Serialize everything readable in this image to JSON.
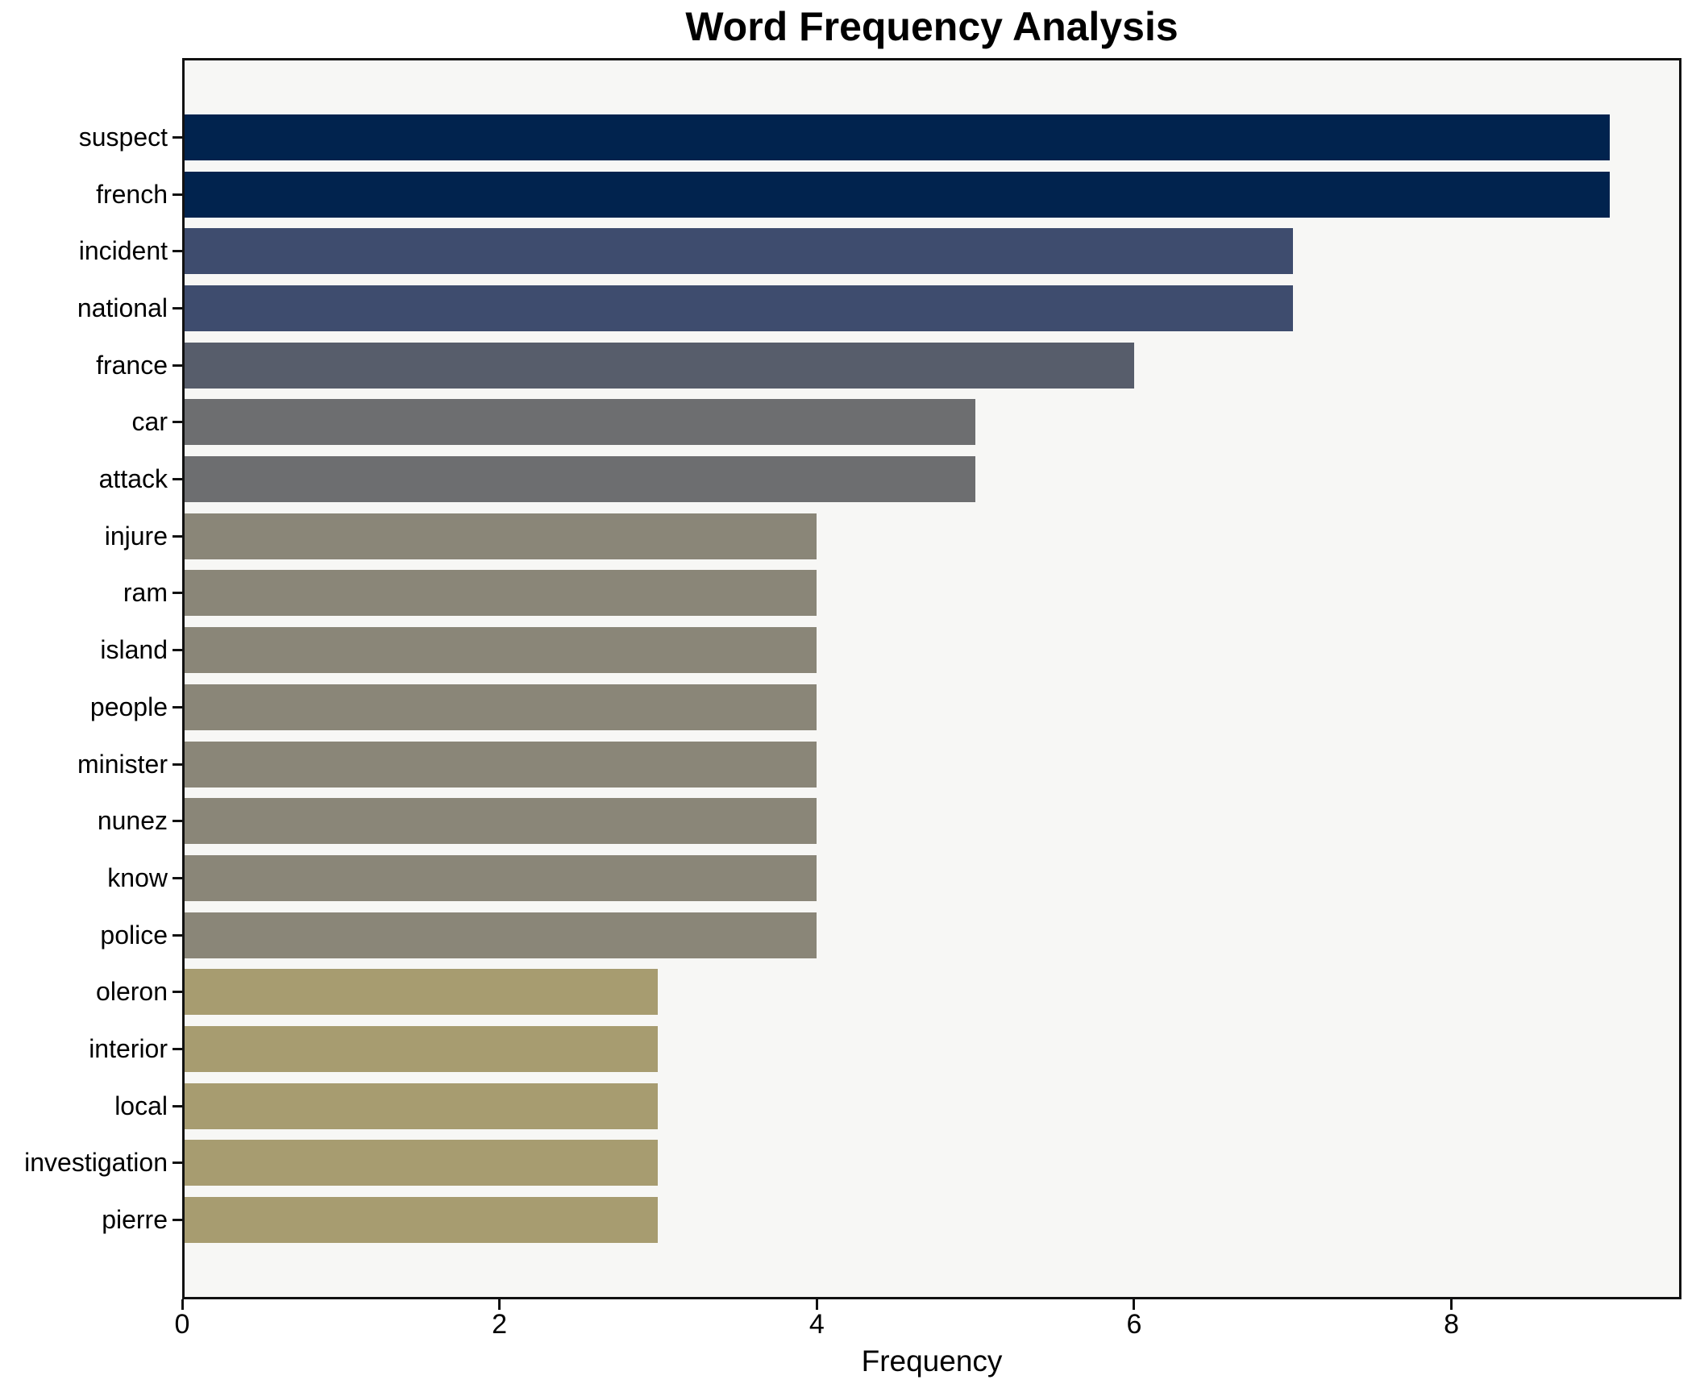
{
  "title": "Word Frequency Analysis",
  "chart_data": {
    "type": "bar",
    "orientation": "horizontal",
    "title": "Word Frequency Analysis",
    "xlabel": "Frequency",
    "ylabel": "",
    "categories": [
      "suspect",
      "french",
      "incident",
      "national",
      "france",
      "car",
      "attack",
      "injure",
      "ram",
      "island",
      "people",
      "minister",
      "nunez",
      "know",
      "police",
      "oleron",
      "interior",
      "local",
      "investigation",
      "pierre"
    ],
    "values": [
      9,
      9,
      7,
      7,
      6,
      5,
      5,
      4,
      4,
      4,
      4,
      4,
      4,
      4,
      4,
      3,
      3,
      3,
      3,
      3
    ],
    "bar_colors": [
      "#01234e",
      "#01234e",
      "#3e4c6e",
      "#3e4c6e",
      "#575d6b",
      "#6d6e70",
      "#6d6e70",
      "#8a8678",
      "#8a8678",
      "#8a8678",
      "#8a8678",
      "#8a8678",
      "#8a8678",
      "#8a8678",
      "#8a8678",
      "#a79c70",
      "#a79c70",
      "#a79c70",
      "#a79c70",
      "#a79c70"
    ],
    "xticks": [
      0,
      2,
      4,
      6,
      8
    ],
    "xlim": [
      0,
      9.45
    ],
    "grid": false,
    "legend": false,
    "plot_background": "#f7f7f5",
    "figure_background": "#ffffff",
    "spine_color": "#111111",
    "text_color": "#000000"
  }
}
